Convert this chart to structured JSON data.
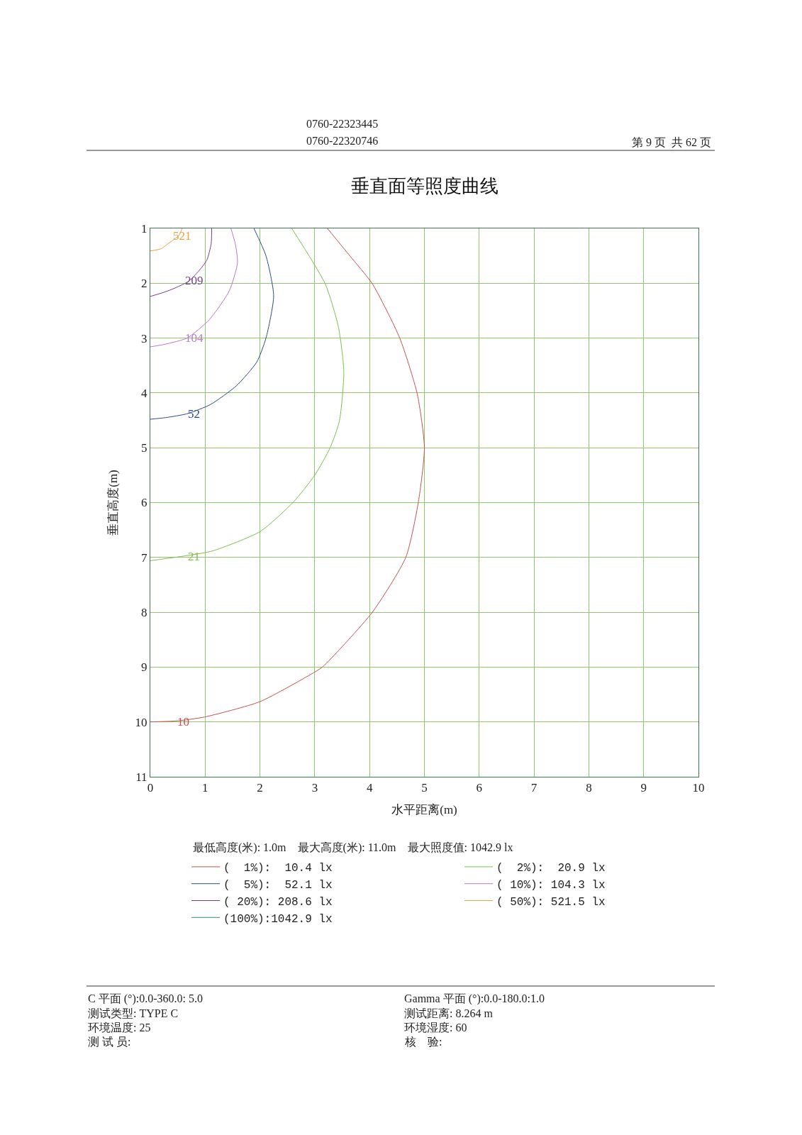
{
  "chart_data": {
    "type": "line",
    "title": "垂直面等照度曲线",
    "xlabel": "水平距离(m)",
    "ylabel": "垂直高度(m)",
    "xlim": [
      0,
      10
    ],
    "xticks": [
      0,
      1,
      2,
      3,
      4,
      5,
      6,
      7,
      8,
      9,
      10
    ],
    "ylim": [
      11,
      1
    ],
    "yticks": [
      1,
      2,
      3,
      4,
      5,
      6,
      7,
      8,
      9,
      10,
      11
    ],
    "grid": true,
    "legend": "bottom",
    "marker": "none",
    "line_style": "solid",
    "series": [
      {
        "name": "(  1%):  10.4 lx",
        "color": "#c8504f",
        "x": [
          3.23,
          3.64,
          4.05,
          4.55,
          4.87,
          5.0,
          4.89,
          4.66,
          4.05,
          3.15,
          3.0,
          2.0,
          0.99,
          0.5,
          0
        ],
        "values": [
          1.0,
          1.5,
          2.01,
          3.0,
          4.02,
          5.0,
          5.99,
          7.0,
          8.0,
          8.99,
          9.09,
          9.63,
          9.91,
          9.98,
          10.0
        ]
      },
      {
        "name": "(  2%):  20.9 lx",
        "color": "#7cbf4a",
        "x": [
          2.58,
          3.19,
          3.43,
          3.53,
          3.45,
          3.28,
          3.0,
          2.61,
          2.0,
          1.14,
          0.71,
          0
        ],
        "values": [
          1.0,
          2.01,
          2.79,
          3.61,
          4.51,
          5.0,
          5.5,
          5.99,
          6.53,
          6.88,
          6.96,
          7.06
        ]
      },
      {
        "name": "(  5%):  52.1 lx",
        "color": "#2b4a8c",
        "x": [
          1.89,
          2.11,
          2.25,
          2.11,
          1.94,
          1.57,
          1.1,
          0.67,
          0.28,
          0
        ],
        "values": [
          1.0,
          1.5,
          2.23,
          3.0,
          3.44,
          3.87,
          4.21,
          4.38,
          4.45,
          4.48
        ]
      },
      {
        "name": "( 10%): 104.3 lx",
        "color": "#b978c8",
        "x": [
          1.47,
          1.55,
          1.59,
          1.44,
          1.08,
          0.67,
          0.28,
          0
        ],
        "values": [
          1.0,
          1.28,
          1.63,
          2.14,
          2.66,
          3.0,
          3.11,
          3.16
        ]
      },
      {
        "name": "( 20%): 208.6 lx",
        "color": "#7a3c8c",
        "x": [
          1.12,
          1.11,
          1.03,
          0.88,
          0.69,
          0.32,
          0
        ],
        "values": [
          1.0,
          1.28,
          1.58,
          1.78,
          1.97,
          2.14,
          2.24
        ]
      },
      {
        "name": "( 50%): 521.5 lx",
        "color": "#e8a040",
        "x": [
          0.58,
          0.52,
          0.32,
          0.2,
          0
        ],
        "values": [
          1.0,
          1.13,
          1.28,
          1.37,
          1.41
        ]
      },
      {
        "name": "(100%):1042.9 lx",
        "color": "#3d8a6a"
      }
    ],
    "annotations": [
      {
        "text": "10",
        "x": 0.6,
        "y": 10.0
      },
      {
        "text": "21",
        "x": 0.79,
        "y": 6.98
      },
      {
        "text": "52",
        "x": 0.8,
        "y": 4.38
      },
      {
        "text": "104",
        "x": 0.8,
        "y": 3.0
      },
      {
        "text": "209",
        "x": 0.8,
        "y": 1.95
      },
      {
        "text": "521",
        "x": 0.58,
        "y": 1.14
      },
      "0760-22323445",
      "0760-22320746",
      "第 9 页  共 62 页",
      "最低高度(米): 1.0m    最大高度(米): 11.0m    最大照度值: 1042.9 lx",
      "C 平面 (°):0.0-360.0: 5.0",
      "Gamma 平面 (°):0.0-180.0:1.0",
      "测试类型: TYPE C",
      "测试距离: 8.264 m",
      "环境温度: 25",
      "环境湿度: 60",
      "测 试 员:",
      "核    验:"
    ]
  }
}
